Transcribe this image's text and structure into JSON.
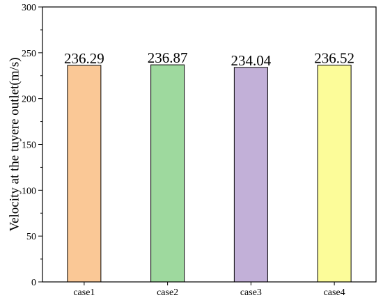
{
  "chart_data": {
    "type": "bar",
    "title": "",
    "xlabel": "",
    "ylabel": "Velocity at the tuyere outlet(m/s)",
    "categories": [
      "case1",
      "case2",
      "case3",
      "case4"
    ],
    "values": [
      236.29,
      236.87,
      234.04,
      236.52
    ],
    "data_labels": [
      "236.29",
      "236.87",
      "234.04",
      "236.52"
    ],
    "colors": [
      "#FAC896",
      "#9ED99E",
      "#C2B0D8",
      "#FCFC99"
    ],
    "ylim": [
      0,
      300
    ],
    "yticks": [
      0,
      50,
      100,
      150,
      200,
      250,
      300
    ],
    "ytick_labels": [
      "0",
      "50",
      "100",
      "150",
      "200",
      "250",
      "300"
    ],
    "grid": false,
    "legend": "none"
  }
}
